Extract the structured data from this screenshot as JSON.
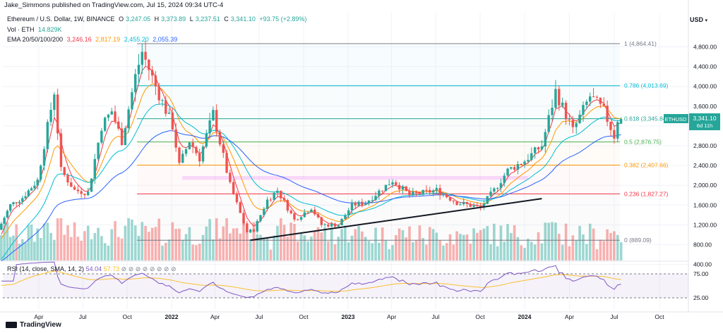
{
  "header": {
    "published_by": "Jake_Simmons published on TradingView.com, Jul 15, 2024 09:34 UTC-4",
    "symbol_line": "Ethereum / U.S. Dollar, 1W, BINANCE",
    "ohlc": {
      "o_label": "O",
      "o": "3,247.05",
      "h_label": "H",
      "h": "3,373.89",
      "l_label": "L",
      "l": "3,237.51",
      "c_label": "C",
      "c": "3,341.10",
      "change": "+93.75 (+2.89%)"
    },
    "vol_label": "Vol · ETH",
    "vol_value": "14.829K",
    "ema_label": "EMA 20/50/100/200",
    "ema_values": [
      "3,246.16",
      "2,817.19",
      "2,455.20",
      "2,055.39"
    ],
    "currency": "USD"
  },
  "colors": {
    "up": "#26a69a",
    "down": "#ef5350",
    "ema20": "#f23645",
    "ema50": "#ff9800",
    "ema100": "#00bcd4",
    "ema200": "#2962ff",
    "rsi": "#7e57c2",
    "rsi_ma": "#fbc02d",
    "fib_1": "#787b86",
    "fib_786": "#00bcd4",
    "fib_618": "#26a69a",
    "fib_5": "#4caf50",
    "fib_382": "#ff9800",
    "fib_236": "#f23645",
    "fib_0": "#787b86",
    "channel": "#e040fb"
  },
  "chart_data": {
    "type": "candlestick",
    "title": "Ethereum / U.S. Dollar, 1W, BINANCE",
    "y_axis": {
      "ticks": [
        400,
        800,
        1200,
        1600,
        2000,
        2400,
        2800,
        3200,
        3600,
        4000,
        4400,
        4800
      ],
      "tick_labels": [
        "400.00",
        "800.00",
        "1,200.00",
        "1,600.00",
        "2,000.00",
        "2,400.00",
        "2,800.00",
        "3,200.00",
        "3,600.00",
        "4,000.00",
        "4,400.00",
        "4,800.00"
      ],
      "ylim": [
        0,
        5000
      ]
    },
    "x_axis": {
      "tick_labels": [
        "Apr",
        "Jul",
        "Oct",
        "2022",
        "Apr",
        "Jul",
        "Oct",
        "2023",
        "Apr",
        "Jul",
        "Oct",
        "2024",
        "Apr",
        "Jul",
        "Oct"
      ],
      "tick_dates": [
        "2021-04",
        "2021-07",
        "2021-10",
        "2022-01",
        "2022-04",
        "2022-07",
        "2022-10",
        "2023-01",
        "2023-04",
        "2023-07",
        "2023-10",
        "2024-01",
        "2024-04",
        "2024-07",
        "2024-10"
      ]
    },
    "price_series": [
      [
        "2021-01-04",
        1100
      ],
      [
        "2021-02-01",
        1600
      ],
      [
        "2021-03-01",
        1750
      ],
      [
        "2021-04-05",
        2100
      ],
      [
        "2021-05-10",
        3900
      ],
      [
        "2021-05-24",
        2300
      ],
      [
        "2021-06-21",
        1900
      ],
      [
        "2021-07-19",
        1850
      ],
      [
        "2021-08-16",
        3200
      ],
      [
        "2021-09-06",
        3500
      ],
      [
        "2021-09-27",
        2900
      ],
      [
        "2021-10-25",
        4200
      ],
      [
        "2021-11-08",
        4700
      ],
      [
        "2021-12-06",
        4000
      ],
      [
        "2022-01-10",
        3200
      ],
      [
        "2022-01-24",
        2400
      ],
      [
        "2022-02-14",
        2900
      ],
      [
        "2022-03-07",
        2550
      ],
      [
        "2022-04-04",
        3450
      ],
      [
        "2022-05-09",
        2000
      ],
      [
        "2022-06-13",
        1050
      ],
      [
        "2022-06-27",
        1100
      ],
      [
        "2022-07-25",
        1700
      ],
      [
        "2022-08-15",
        1900
      ],
      [
        "2022-09-19",
        1300
      ],
      [
        "2022-10-24",
        1550
      ],
      [
        "2022-11-14",
        1200
      ],
      [
        "2022-12-19",
        1200
      ],
      [
        "2023-01-16",
        1600
      ],
      [
        "2023-02-13",
        1650
      ],
      [
        "2023-04-10",
        2100
      ],
      [
        "2023-05-15",
        1800
      ],
      [
        "2023-07-10",
        1900
      ],
      [
        "2023-08-21",
        1650
      ],
      [
        "2023-10-09",
        1550
      ],
      [
        "2023-11-06",
        1900
      ],
      [
        "2023-12-04",
        2300
      ],
      [
        "2024-01-08",
        2500
      ],
      [
        "2024-02-12",
        2800
      ],
      [
        "2024-03-11",
        3900
      ],
      [
        "2024-04-15",
        3100
      ],
      [
        "2024-05-20",
        3800
      ],
      [
        "2024-06-17",
        3500
      ],
      [
        "2024-07-08",
        3000
      ],
      [
        "2024-07-15",
        3341.1
      ]
    ],
    "fib_levels": [
      {
        "ratio": "1",
        "price": 4864.41,
        "label": "1 (4,864.41)"
      },
      {
        "ratio": "0.786",
        "price": 4013.69,
        "label": "0.786 (4,013.69)"
      },
      {
        "ratio": "0.618",
        "price": 3345.84,
        "label": "0.618 (3,345.84)"
      },
      {
        "ratio": "0.5",
        "price": 2876.75,
        "label": "0.5 (2,876.75)"
      },
      {
        "ratio": "0.382",
        "price": 2407.66,
        "label": "0.382 (2,407.66)"
      },
      {
        "ratio": "0.236",
        "price": 1827.27,
        "label": "0.236 (1,827.27)"
      },
      {
        "ratio": "0",
        "price": 889.09,
        "label": "0 (889.09)"
      }
    ],
    "price_tag": {
      "symbol": "ETHUSD",
      "price": "3,341.10",
      "countdown": "6d 11h"
    },
    "resistance_zone": {
      "from": "2022-01-24",
      "to": "2024-01-08",
      "low": 2120,
      "high": 2180
    },
    "trendline": {
      "from": [
        "2022-06-13",
        889.09
      ],
      "to": [
        "2024-02-05",
        1730
      ]
    },
    "rsi": {
      "settings": "RSI (14, close, SMA, 14, 2)",
      "value": "54.04",
      "ma_value": "57.73",
      "levels": [
        "75.00",
        "25.00"
      ]
    }
  },
  "footer": {
    "brand": "TradingView"
  }
}
